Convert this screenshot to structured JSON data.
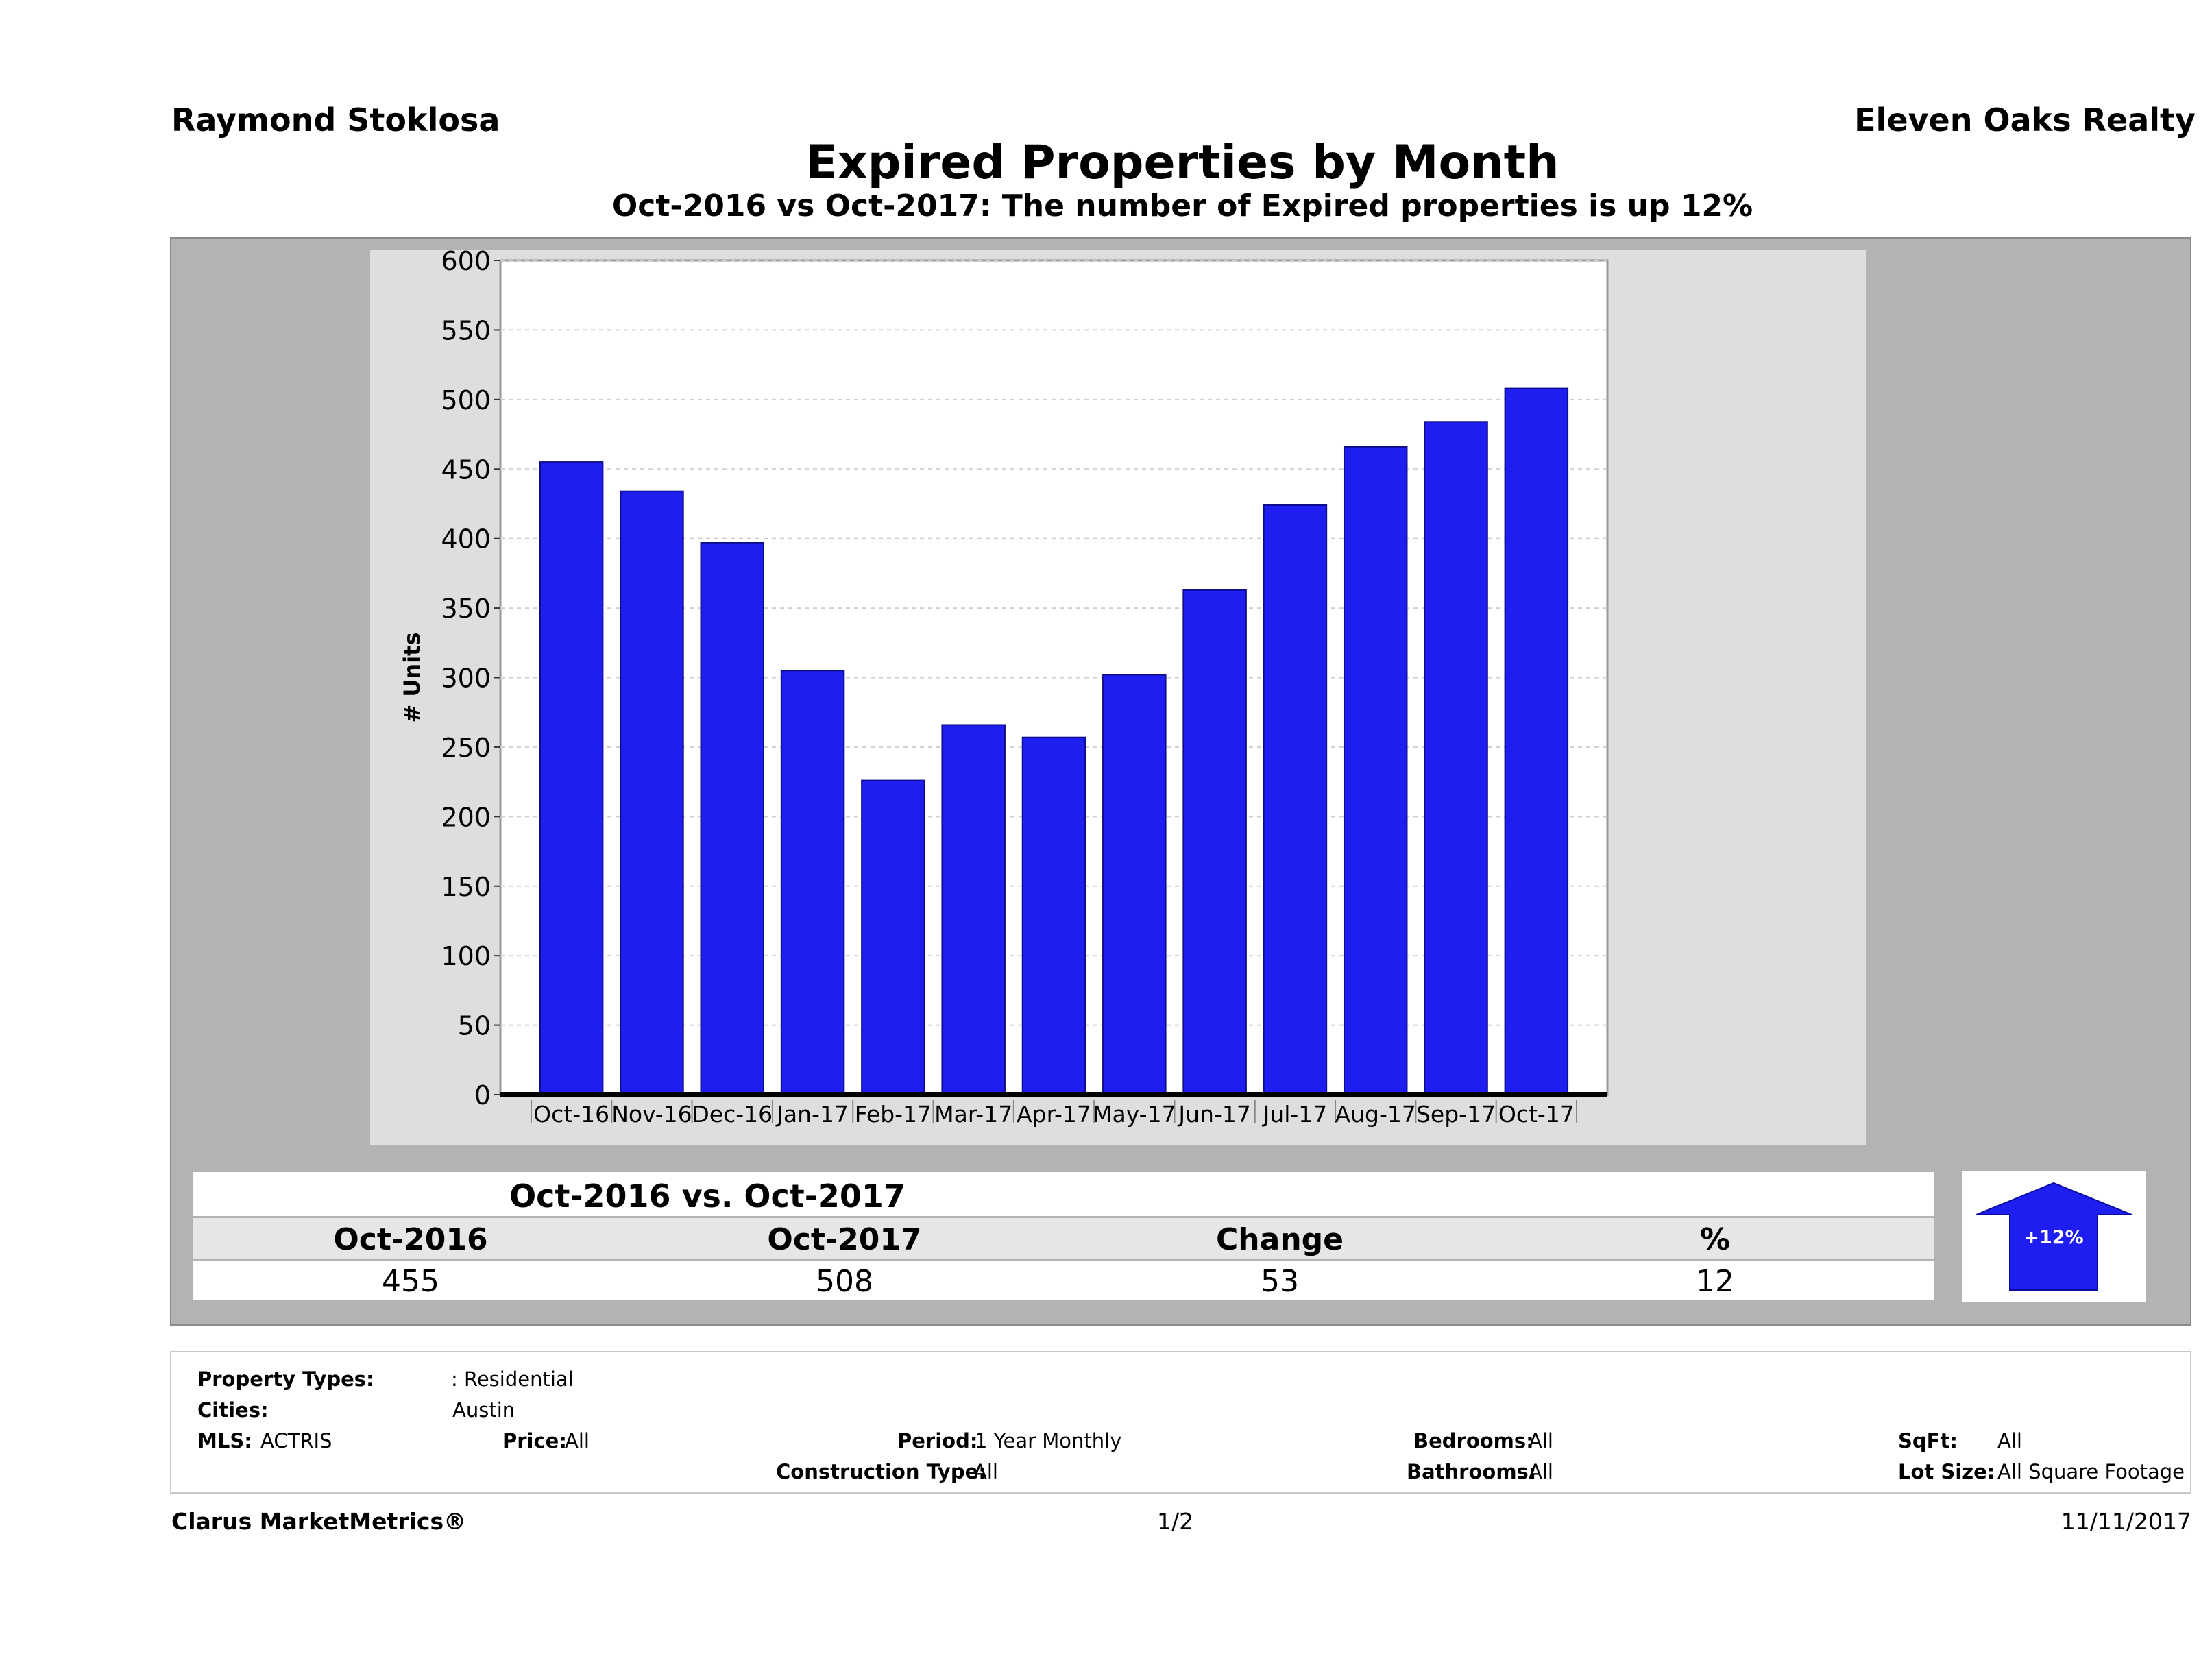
{
  "header": {
    "agent": "Raymond Stoklosa",
    "brokerage": "Eleven Oaks Realty",
    "title": "Expired Properties by Month",
    "subtitle": "Oct-2016 vs Oct-2017: The number of Expired  properties is up 12%"
  },
  "chart_data": {
    "type": "bar",
    "categories": [
      "Oct-16",
      "Nov-16",
      "Dec-16",
      "Jan-17",
      "Feb-17",
      "Mar-17",
      "Apr-17",
      "May-17",
      "Jun-17",
      "Jul-17",
      "Aug-17",
      "Sep-17",
      "Oct-17"
    ],
    "values": [
      455,
      434,
      397,
      305,
      226,
      266,
      257,
      302,
      363,
      424,
      466,
      484,
      508
    ],
    "ylabel": "# Units",
    "xlabel": "",
    "ylim": [
      0,
      600
    ],
    "yticks": [
      0,
      50,
      100,
      150,
      200,
      250,
      300,
      350,
      400,
      450,
      500,
      550,
      600
    ],
    "grid": true,
    "bar_color": "#1e1ef0"
  },
  "summary": {
    "title": "Oct-2016 vs. Oct-2017",
    "headers": [
      "Oct-2016",
      "Oct-2017",
      "Change",
      "%"
    ],
    "values": [
      "455",
      "508",
      "53",
      "12"
    ],
    "badge": "+12%",
    "badge_color": "#1e1ef0"
  },
  "criteria": {
    "property_types_label": "Property Types:",
    "property_types_value": ": Residential",
    "cities_label": "Cities:",
    "cities_value": "Austin",
    "mls_label": "MLS:",
    "mls_value": "ACTRIS",
    "price_label": "Price:",
    "price_value": "All",
    "period_label": "Period:",
    "period_value": "1 Year Monthly",
    "construction_label": "Construction Type:",
    "construction_value": "All",
    "bedrooms_label": "Bedrooms:",
    "bedrooms_value": "All",
    "bathrooms_label": "Bathrooms:",
    "bathrooms_value": "All",
    "sqft_label": "SqFt:",
    "sqft_value": "All",
    "lotsize_label": "Lot Size:",
    "lotsize_value": "All Square Footage"
  },
  "footer": {
    "brand": "Clarus MarketMetrics®",
    "page": "1/2",
    "date": "11/11/2017"
  }
}
